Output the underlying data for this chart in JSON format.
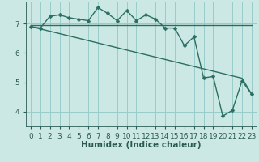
{
  "xlabel": "Humidex (Indice chaleur)",
  "background_color": "#cce8e4",
  "grid_color": "#99cccc",
  "line_color": "#2a6e62",
  "x_values": [
    0,
    1,
    2,
    3,
    4,
    5,
    6,
    7,
    8,
    9,
    10,
    11,
    12,
    13,
    14,
    15,
    16,
    17,
    18,
    19,
    20,
    21,
    22,
    23
  ],
  "line_flat": [
    6.95,
    6.95,
    6.95,
    6.95,
    6.95,
    6.95,
    6.95,
    6.95,
    6.95,
    6.95,
    6.95,
    6.95,
    6.95,
    6.95,
    6.95,
    6.95,
    6.95,
    6.95,
    6.95,
    6.95,
    6.95,
    6.95,
    6.95,
    6.95
  ],
  "line_jagged": [
    6.9,
    6.85,
    7.25,
    7.3,
    7.2,
    7.15,
    7.1,
    7.55,
    7.35,
    7.1,
    7.45,
    7.1,
    7.3,
    7.15,
    6.85,
    6.85,
    6.25,
    6.55,
    5.15,
    5.2,
    3.85,
    4.05,
    5.05,
    4.6
  ],
  "line_diagonal": [
    6.9,
    6.82,
    6.74,
    6.66,
    6.58,
    6.5,
    6.42,
    6.34,
    6.26,
    6.18,
    6.1,
    6.02,
    5.94,
    5.86,
    5.78,
    5.7,
    5.62,
    5.54,
    5.46,
    5.38,
    5.3,
    5.22,
    5.14,
    4.6
  ],
  "ylim": [
    3.5,
    7.75
  ],
  "yticks": [
    4,
    5,
    6,
    7
  ],
  "xlim": [
    -0.5,
    23.5
  ],
  "xticks": [
    0,
    1,
    2,
    3,
    4,
    5,
    6,
    7,
    8,
    9,
    10,
    11,
    12,
    13,
    14,
    15,
    16,
    17,
    18,
    19,
    20,
    21,
    22,
    23
  ],
  "markersize": 2.5,
  "linewidth": 1.0,
  "font_color": "#2a5a52",
  "xlabel_fontsize": 7.5,
  "tick_fontsize": 6.5
}
